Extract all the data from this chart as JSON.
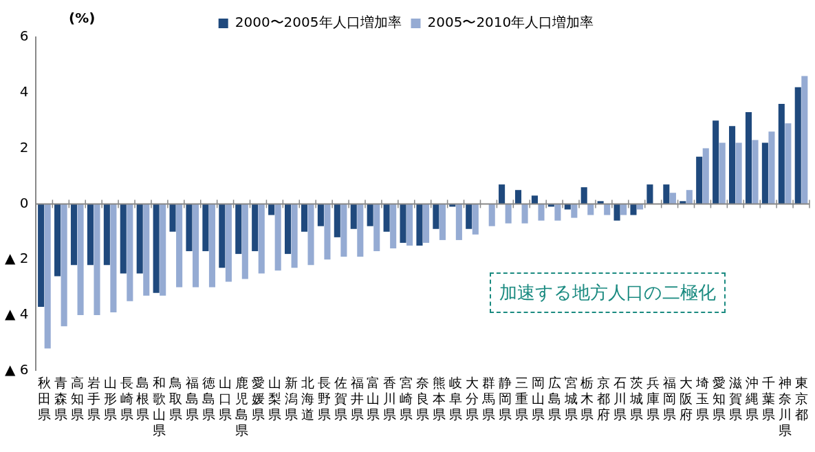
{
  "chart_data": {
    "type": "bar",
    "ylabel": "(%)",
    "legend": "top",
    "categories": [
      "秋田県",
      "青森県",
      "高知県",
      "岩手県",
      "山形県",
      "長崎県",
      "島根県",
      "和歌山県",
      "鳥取県",
      "福島県",
      "徳島県",
      "山口県",
      "鹿児島県",
      "愛媛県",
      "山梨県",
      "新潟県",
      "北海道",
      "長野県",
      "佐賀県",
      "福井県",
      "富山県",
      "香川県",
      "宮崎県",
      "奈良県",
      "熊本県",
      "岐阜県",
      "大分県",
      "群馬県",
      "静岡県",
      "三重県",
      "岡山県",
      "広島県",
      "宮城県",
      "栃木県",
      "京都府",
      "石川県",
      "茨城県",
      "兵庫県",
      "福岡県",
      "大阪府",
      "埼玉県",
      "愛知県",
      "滋賀県",
      "沖縄県",
      "千葉県",
      "神奈川県",
      "東京都"
    ],
    "series": [
      {
        "name": "2000〜2005年人口増加率",
        "color": "#1f497d",
        "values": [
          -3.7,
          -2.6,
          -2.2,
          -2.2,
          -2.2,
          -2.5,
          -2.5,
          -3.2,
          -1.0,
          -1.7,
          -1.7,
          -2.3,
          -1.8,
          -1.7,
          -0.4,
          -1.8,
          -1.0,
          -0.8,
          -1.2,
          -0.9,
          -0.8,
          -1.0,
          -1.4,
          -1.5,
          -0.9,
          -0.1,
          -0.9,
          0.0,
          0.7,
          0.5,
          0.3,
          -0.1,
          -0.2,
          0.6,
          0.1,
          -0.6,
          -0.4,
          0.7,
          0.7,
          0.1,
          1.7,
          3.0,
          2.8,
          3.3,
          2.2,
          3.6,
          4.2
        ]
      },
      {
        "name": "2005〜2010年人口増加率",
        "color": "#95abd3",
        "values": [
          -5.2,
          -4.4,
          -4.0,
          -4.0,
          -3.9,
          -3.5,
          -3.3,
          -3.3,
          -3.0,
          -3.0,
          -3.0,
          -2.8,
          -2.7,
          -2.5,
          -2.4,
          -2.3,
          -2.2,
          -2.0,
          -1.9,
          -1.9,
          -1.7,
          -1.6,
          -1.5,
          -1.4,
          -1.3,
          -1.3,
          -1.1,
          -0.8,
          -0.7,
          -0.7,
          -0.6,
          -0.6,
          -0.5,
          -0.4,
          -0.4,
          -0.4,
          -0.2,
          0.0,
          0.4,
          0.5,
          2.0,
          2.2,
          2.2,
          2.3,
          2.6,
          2.9,
          4.6
        ]
      }
    ],
    "ylim": [
      -6,
      6
    ],
    "yticks": [
      {
        "value": -6,
        "label": "▲ 6"
      },
      {
        "value": -4,
        "label": "▲ 4"
      },
      {
        "value": -2,
        "label": "▲ 2"
      },
      0,
      2,
      4,
      6
    ],
    "grid": false,
    "ref_lines": [
      {
        "axis": "y",
        "value": 0,
        "color": "#888888"
      }
    ],
    "annotations": [
      "加速する地方人口の二極化"
    ]
  }
}
